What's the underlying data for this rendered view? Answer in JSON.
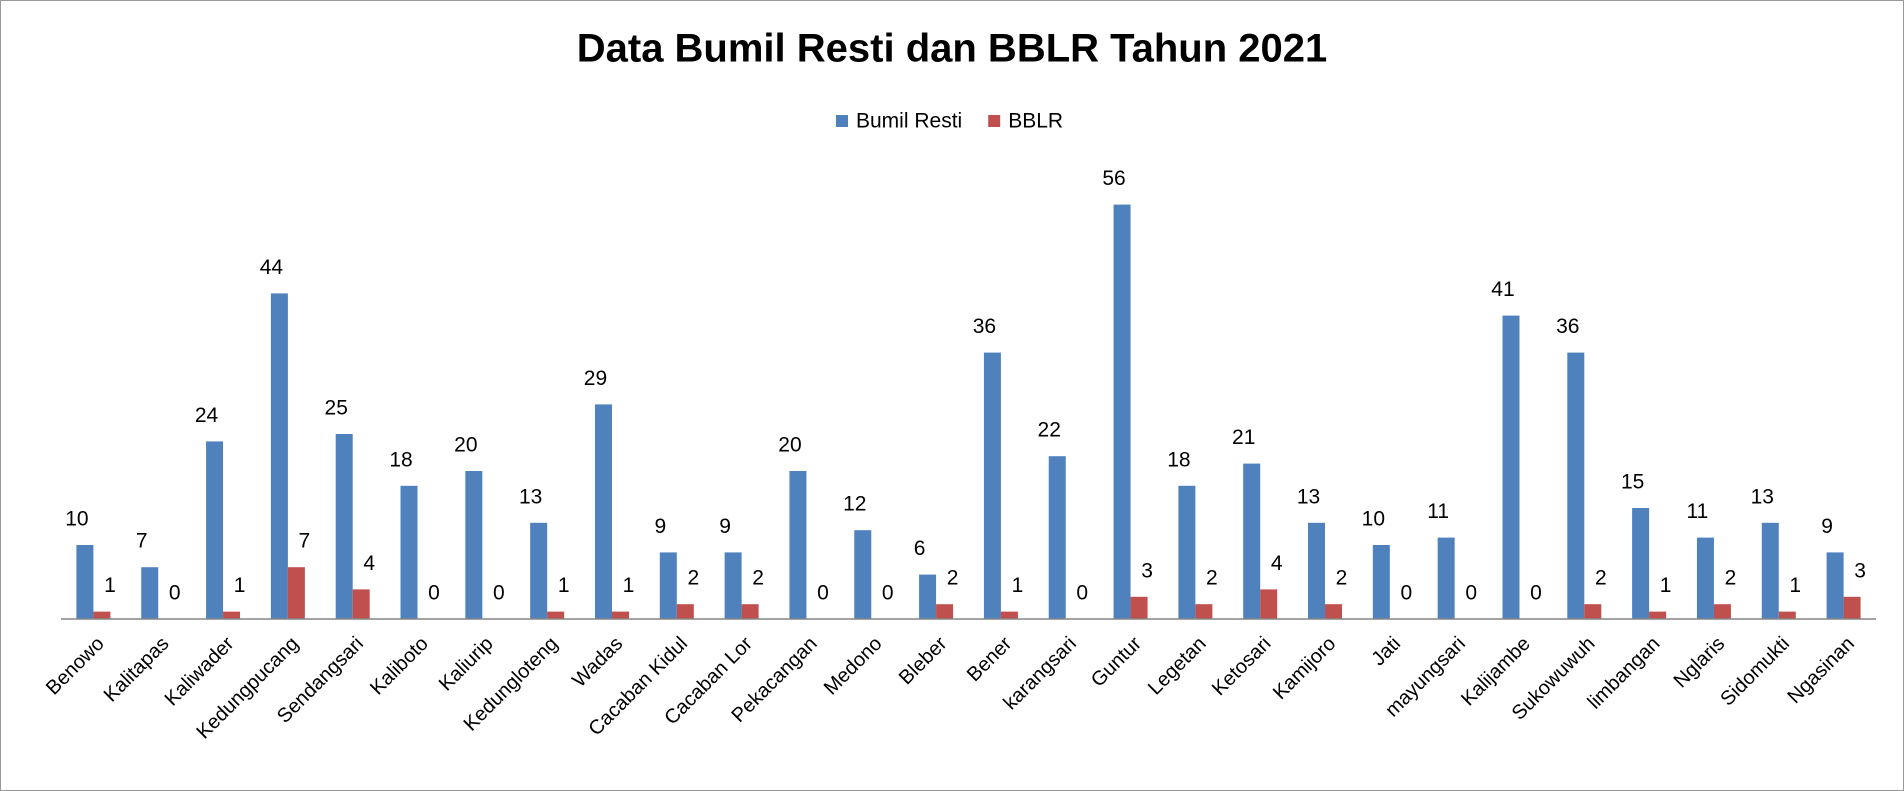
{
  "chart_data": {
    "type": "bar",
    "title": "Data Bumil Resti dan BBLR Tahun 2021",
    "categories": [
      "Benowo",
      "Kalitapas",
      "Kaliwader",
      "Kedungpucang",
      "Sendangsari",
      "Kaliboto",
      "Kaliurip",
      "Kedungloteng",
      "Wadas",
      "Cacaban Kidul",
      "Cacaban Lor",
      "Pekacangan",
      "Medono",
      "Bleber",
      "Bener",
      "karangsari",
      "Guntur",
      "Legetan",
      "Ketosari",
      "Kamijoro",
      "Jati",
      "mayungsari",
      "Kalijambe",
      "Sukowuwuh",
      "limbangan",
      "Nglaris",
      "Sidomukti",
      "Ngasinan"
    ],
    "series": [
      {
        "name": "Bumil Resti",
        "color": "#4f81bd",
        "values": [
          10,
          7,
          24,
          44,
          25,
          18,
          20,
          13,
          29,
          9,
          9,
          20,
          12,
          6,
          36,
          22,
          56,
          18,
          21,
          13,
          10,
          11,
          41,
          36,
          15,
          11,
          13,
          9
        ]
      },
      {
        "name": "BBLR",
        "color": "#c0504d",
        "values": [
          1,
          0,
          1,
          7,
          4,
          0,
          0,
          1,
          1,
          2,
          2,
          0,
          0,
          2,
          1,
          0,
          3,
          2,
          4,
          2,
          0,
          0,
          0,
          2,
          1,
          2,
          1,
          3
        ]
      }
    ],
    "ylim": [
      0,
      60
    ],
    "legend": "top"
  }
}
